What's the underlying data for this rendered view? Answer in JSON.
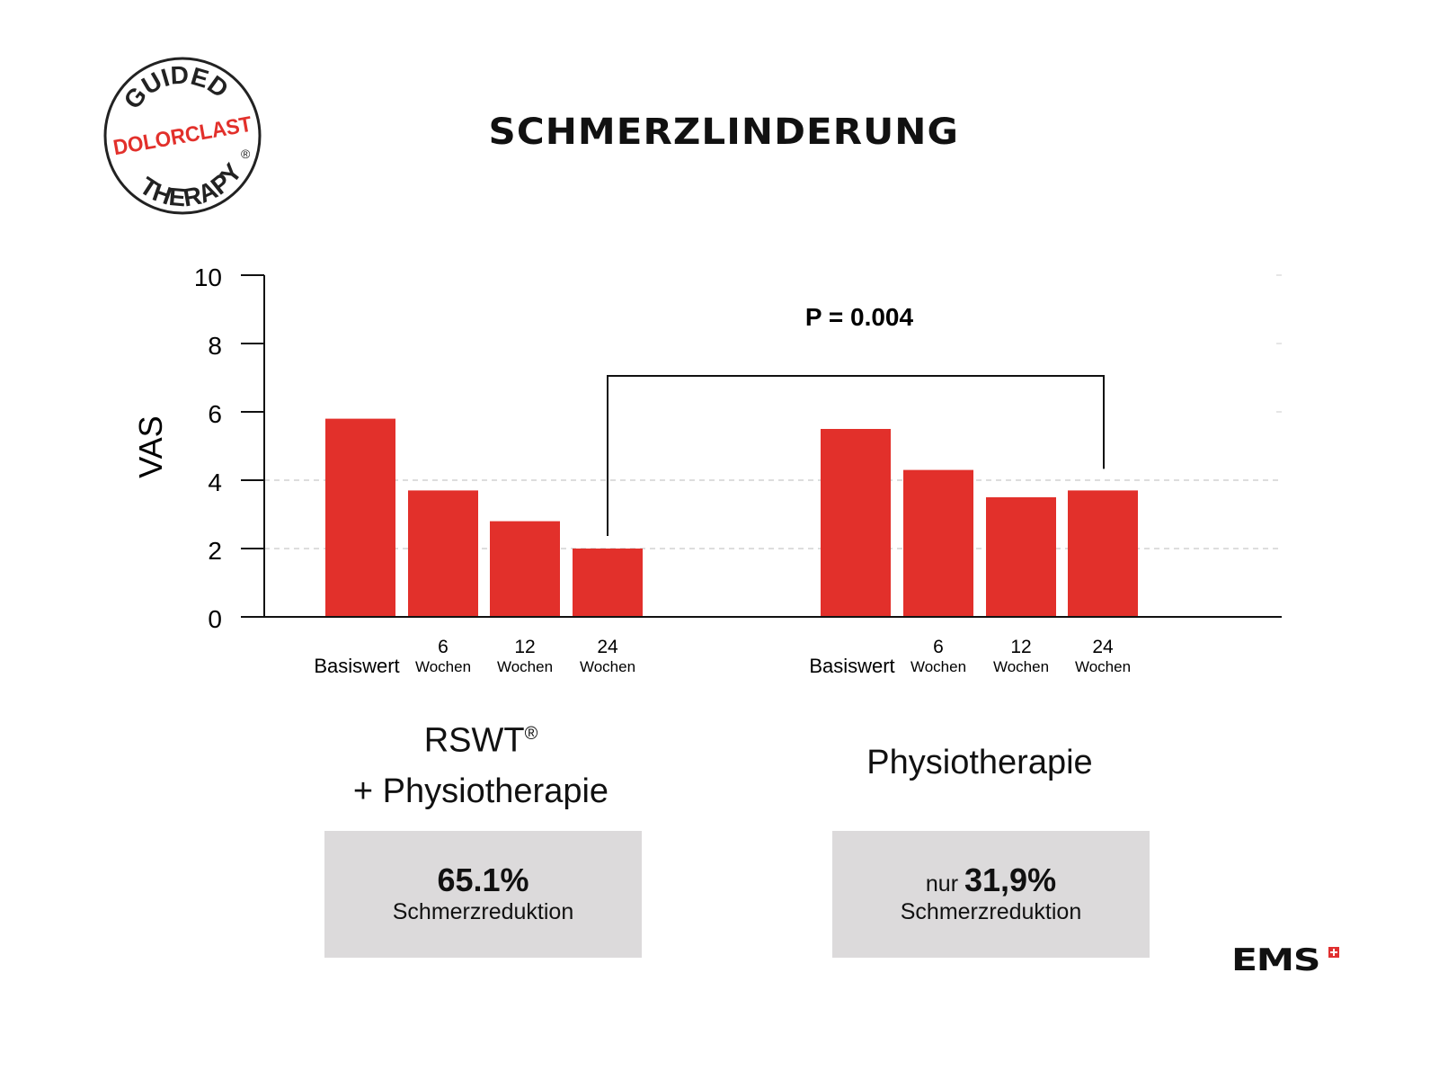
{
  "logo": {
    "top": "GUIDED",
    "middle": "DOLORCLAST",
    "bottom": "THERAPY",
    "mark": "®"
  },
  "title": "SCHMERZLINDERUNG",
  "brand": "EMS",
  "chart_data": {
    "type": "bar",
    "title": "SCHMERZLINDERUNG",
    "ylabel": "VAS",
    "xlabel": "",
    "ylim": [
      0,
      10
    ],
    "yticks": [
      0,
      2,
      4,
      6,
      8,
      10
    ],
    "grid": "dashed horizontal at 2 and 4",
    "groups": [
      {
        "name": "RSWT® + Physiotherapie",
        "label_line1": "RSWT",
        "label_mark": "®",
        "label_line2": "+ Physiotherapie",
        "categories": [
          {
            "num": "",
            "unit": "Basiswert"
          },
          {
            "num": "6",
            "unit": "Wochen"
          },
          {
            "num": "12",
            "unit": "Wochen"
          },
          {
            "num": "24",
            "unit": "Wochen"
          }
        ],
        "values": [
          5.8,
          3.7,
          2.8,
          2.0
        ],
        "summary": {
          "prefix": "",
          "value": "65.1%",
          "text": "Schmerzreduktion"
        }
      },
      {
        "name": "Physiotherapie",
        "label_line1": "Physiotherapie",
        "categories": [
          {
            "num": "",
            "unit": "Basiswert"
          },
          {
            "num": "6",
            "unit": "Wochen"
          },
          {
            "num": "12",
            "unit": "Wochen"
          },
          {
            "num": "24",
            "unit": "Wochen"
          }
        ],
        "values": [
          5.5,
          4.3,
          3.5,
          3.7
        ],
        "summary": {
          "prefix": "nur ",
          "value": "31,9%",
          "text": "Schmerzreduktion"
        }
      }
    ],
    "annotation": "P = 0.004",
    "bar_color": "#e2302b"
  }
}
